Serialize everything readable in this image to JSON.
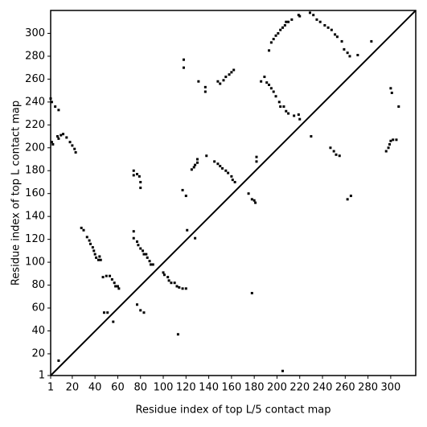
{
  "chart_data": {
    "type": "scatter",
    "xlabel": "Residue index of top L/5 contact map",
    "ylabel": "Residue index of top L contact map",
    "xlim": [
      1,
      322
    ],
    "ylim": [
      1,
      320
    ],
    "xticks": [
      1,
      20,
      40,
      60,
      80,
      100,
      120,
      140,
      160,
      180,
      200,
      220,
      240,
      260,
      280,
      300
    ],
    "yticks": [
      1,
      20,
      40,
      60,
      80,
      100,
      120,
      140,
      160,
      180,
      200,
      220,
      240,
      260,
      280,
      300
    ],
    "color": "#000000",
    "x": [
      1,
      2,
      5,
      8,
      2,
      3,
      7,
      8,
      10,
      12,
      15,
      18,
      20,
      22,
      23,
      8,
      28,
      30,
      33,
      35,
      36,
      38,
      39,
      40,
      41,
      43,
      45,
      44,
      47,
      50,
      53,
      55,
      57,
      58,
      60,
      61,
      48,
      51,
      56,
      74,
      74,
      77,
      78,
      80,
      82,
      83,
      85,
      86,
      88,
      89,
      91,
      77,
      80,
      83,
      74,
      74,
      77,
      79,
      80,
      80,
      100,
      101,
      104,
      105,
      107,
      110,
      112,
      114,
      117,
      120,
      113,
      117,
      120,
      118,
      118,
      121,
      128,
      125,
      127,
      128,
      130,
      130,
      138,
      131,
      137,
      137,
      145,
      148,
      150,
      152,
      155,
      157,
      160,
      161,
      163,
      148,
      150,
      153,
      155,
      158,
      160,
      162,
      175,
      178,
      180,
      181,
      178,
      182,
      182,
      186,
      189,
      191,
      193,
      195,
      197,
      199,
      202,
      203,
      206,
      208,
      210,
      215,
      219,
      220,
      193,
      195,
      197,
      199,
      201,
      203,
      205,
      207,
      208,
      210,
      213,
      219,
      220,
      205,
      229,
      232,
      235,
      238,
      242,
      245,
      248,
      251,
      253,
      257,
      230,
      247,
      250,
      252,
      255,
      259,
      262,
      264,
      271,
      283,
      262,
      265,
      296,
      298,
      299,
      300,
      302,
      305,
      300,
      301,
      307
    ],
    "values": [
      243,
      240,
      236,
      233,
      205,
      203,
      210,
      208,
      211,
      212,
      209,
      205,
      202,
      199,
      196,
      14,
      130,
      128,
      122,
      119,
      116,
      113,
      110,
      107,
      104,
      102,
      102,
      105,
      87,
      88,
      88,
      85,
      82,
      79,
      79,
      77,
      56,
      56,
      48,
      127,
      121,
      118,
      115,
      112,
      110,
      107,
      107,
      104,
      101,
      98,
      98,
      63,
      58,
      56,
      180,
      176,
      177,
      175,
      170,
      165,
      91,
      89,
      87,
      84,
      82,
      82,
      79,
      78,
      77,
      77,
      37,
      163,
      158,
      277,
      270,
      128,
      121,
      181,
      183,
      185,
      187,
      190,
      193,
      258,
      253,
      249,
      188,
      186,
      184,
      182,
      180,
      178,
      175,
      172,
      170,
      258,
      256,
      259,
      262,
      264,
      266,
      268,
      160,
      155,
      154,
      152,
      73,
      192,
      188,
      258,
      262,
      257,
      255,
      252,
      249,
      245,
      240,
      236,
      236,
      232,
      230,
      228,
      229,
      225,
      285,
      292,
      295,
      298,
      300,
      303,
      305,
      307,
      310,
      310,
      312,
      316,
      315,
      5,
      318,
      316,
      312,
      310,
      307,
      305,
      303,
      299,
      297,
      293,
      210,
      200,
      197,
      194,
      193,
      286,
      283,
      280,
      281,
      293,
      155,
      158,
      197,
      200,
      203,
      206,
      207,
      207,
      252,
      248,
      236
    ]
  }
}
